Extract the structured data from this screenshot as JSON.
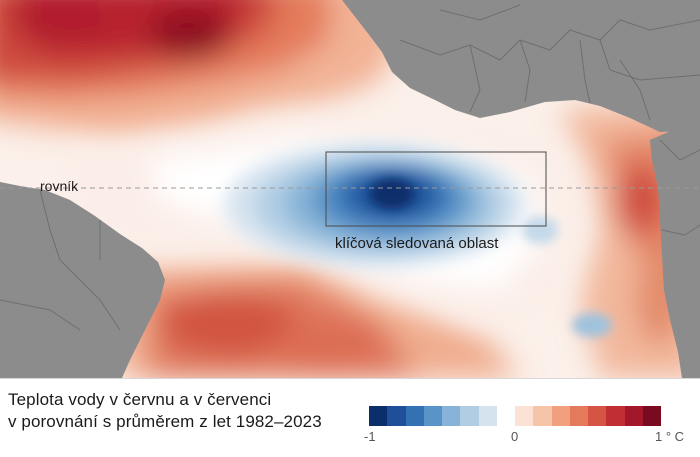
{
  "map": {
    "equator_label": "rovník",
    "region_label": "klíčová sledovaná oblast",
    "colors": {
      "land": "#8c8c8c",
      "borders": "#6f6f6f",
      "ocean_base": "#fbf0ea",
      "equator_line": "#9a9a9a",
      "box_outline": "#4a4a4a"
    }
  },
  "caption": {
    "line1": "Teplota vody v červnu a v červenci",
    "line2": "v porovnání s průměrem z let 1982–2023"
  },
  "legend": {
    "min_label": "-1",
    "mid_label": "0",
    "max_label": "1 ° C",
    "min_value": -1,
    "max_value": 1,
    "colors": [
      "#0b2f6b",
      "#1f4f98",
      "#3471b3",
      "#5a93c7",
      "#86b3d7",
      "#b0cde4",
      "#d5e3ef",
      "#ffffff",
      "#fbe2d4",
      "#f6c4a9",
      "#f0a07f",
      "#e57a5b",
      "#d65443",
      "#c12f35",
      "#a3172b",
      "#7a0a1f"
    ]
  }
}
